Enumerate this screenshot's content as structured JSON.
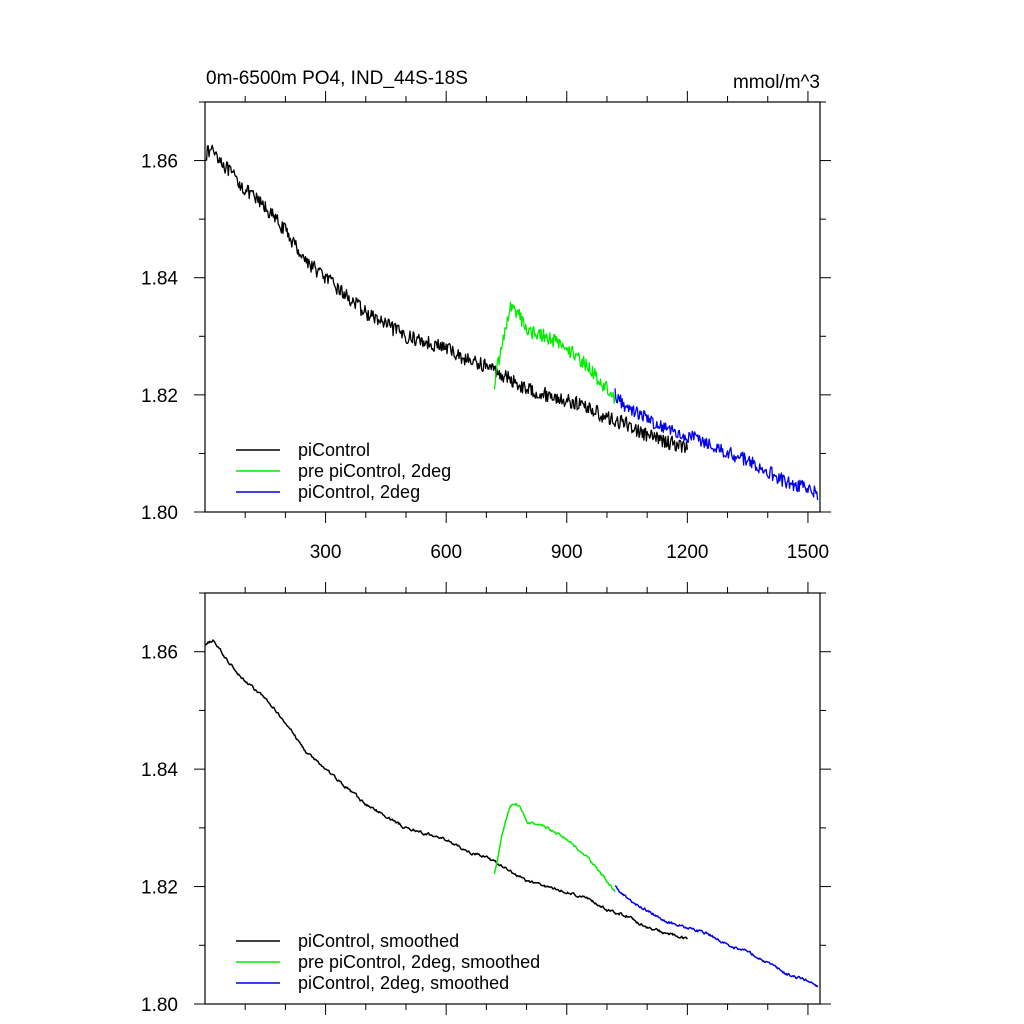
{
  "header": {
    "left_title": "0m-6500m PO4, IND_44S-18S",
    "units": "mmol/m^3"
  },
  "colors": {
    "piControl": "#000000",
    "pre_piControl_2deg": "#00ee00",
    "piControl_2deg": "#0000ee"
  },
  "chart_data": [
    {
      "type": "line",
      "title": "0m-6500m PO4, IND_44S-18S",
      "units": "mmol/m^3",
      "xlabel": "",
      "ylabel": "",
      "xlim": [
        0,
        1530
      ],
      "ylim": [
        1.8,
        1.87
      ],
      "x_ticks": [
        300,
        600,
        900,
        1200,
        1500
      ],
      "x_tick_labels": [
        "300",
        "600",
        "900",
        "1200",
        "1500"
      ],
      "y_ticks": [
        1.8,
        1.82,
        1.84,
        1.86
      ],
      "y_tick_labels": [
        "1.80",
        "1.82",
        "1.84",
        "1.86"
      ],
      "grid": false,
      "legend_position": "bottom-left",
      "noise_amplitude": 0.0012,
      "series": [
        {
          "name": "piControl",
          "color": "#000000",
          "anchors": [
            [
              0,
              1.861
            ],
            [
              20,
              1.862
            ],
            [
              50,
              1.859
            ],
            [
              100,
              1.855
            ],
            [
              150,
              1.852
            ],
            [
              200,
              1.848
            ],
            [
              250,
              1.843
            ],
            [
              300,
              1.84
            ],
            [
              350,
              1.837
            ],
            [
              400,
              1.834
            ],
            [
              450,
              1.832
            ],
            [
              500,
              1.83
            ],
            [
              550,
              1.829
            ],
            [
              600,
              1.828
            ],
            [
              650,
              1.826
            ],
            [
              700,
              1.825
            ],
            [
              750,
              1.823
            ],
            [
              800,
              1.821
            ],
            [
              850,
              1.82
            ],
            [
              900,
              1.819
            ],
            [
              950,
              1.818
            ],
            [
              1000,
              1.816
            ],
            [
              1050,
              1.815
            ],
            [
              1100,
              1.813
            ],
            [
              1150,
              1.812
            ],
            [
              1200,
              1.811
            ]
          ]
        },
        {
          "name": "pre piControl, 2deg",
          "color": "#00ee00",
          "anchors": [
            [
              720,
              1.822
            ],
            [
              740,
              1.829
            ],
            [
              760,
              1.835
            ],
            [
              780,
              1.834
            ],
            [
              800,
              1.831
            ],
            [
              850,
              1.83
            ],
            [
              900,
              1.828
            ],
            [
              950,
              1.825
            ],
            [
              1000,
              1.821
            ],
            [
              1020,
              1.819
            ]
          ]
        },
        {
          "name": "piControl, 2deg",
          "color": "#0000ee",
          "anchors": [
            [
              1020,
              1.82
            ],
            [
              1050,
              1.818
            ],
            [
              1100,
              1.816
            ],
            [
              1150,
              1.814
            ],
            [
              1200,
              1.813
            ],
            [
              1250,
              1.812
            ],
            [
              1300,
              1.81
            ],
            [
              1350,
              1.809
            ],
            [
              1400,
              1.807
            ],
            [
              1450,
              1.805
            ],
            [
              1500,
              1.804
            ],
            [
              1525,
              1.803
            ]
          ]
        }
      ]
    },
    {
      "type": "line",
      "title": "",
      "xlabel": "",
      "ylabel": "",
      "xlim": [
        0,
        1530
      ],
      "ylim": [
        1.8,
        1.87
      ],
      "x_ticks": [
        300,
        600,
        900,
        1200,
        1500
      ],
      "x_tick_labels": [],
      "y_ticks": [
        1.8,
        1.82,
        1.84,
        1.86
      ],
      "y_tick_labels": [
        "1.80",
        "1.82",
        "1.84",
        "1.86"
      ],
      "grid": false,
      "legend_position": "bottom-left",
      "noise_amplitude": 0.0005,
      "series": [
        {
          "name": "piControl, smoothed",
          "color": "#000000",
          "anchors": [
            [
              0,
              1.861
            ],
            [
              20,
              1.862
            ],
            [
              50,
              1.859
            ],
            [
              100,
              1.855
            ],
            [
              150,
              1.852
            ],
            [
              200,
              1.848
            ],
            [
              250,
              1.843
            ],
            [
              300,
              1.84
            ],
            [
              350,
              1.837
            ],
            [
              400,
              1.834
            ],
            [
              450,
              1.832
            ],
            [
              500,
              1.83
            ],
            [
              550,
              1.829
            ],
            [
              600,
              1.828
            ],
            [
              650,
              1.826
            ],
            [
              700,
              1.825
            ],
            [
              750,
              1.823
            ],
            [
              800,
              1.821
            ],
            [
              850,
              1.82
            ],
            [
              900,
              1.819
            ],
            [
              950,
              1.818
            ],
            [
              1000,
              1.816
            ],
            [
              1050,
              1.815
            ],
            [
              1100,
              1.813
            ],
            [
              1150,
              1.812
            ],
            [
              1200,
              1.811
            ]
          ]
        },
        {
          "name": "pre piControl, 2deg, smoothed",
          "color": "#00ee00",
          "anchors": [
            [
              720,
              1.822
            ],
            [
              740,
              1.829
            ],
            [
              760,
              1.834
            ],
            [
              780,
              1.834
            ],
            [
              800,
              1.831
            ],
            [
              850,
              1.83
            ],
            [
              900,
              1.828
            ],
            [
              950,
              1.825
            ],
            [
              1000,
              1.821
            ],
            [
              1020,
              1.819
            ]
          ]
        },
        {
          "name": "piControl, 2deg, smoothed",
          "color": "#0000ee",
          "anchors": [
            [
              1020,
              1.82
            ],
            [
              1050,
              1.818
            ],
            [
              1100,
              1.816
            ],
            [
              1150,
              1.814
            ],
            [
              1200,
              1.813
            ],
            [
              1250,
              1.812
            ],
            [
              1300,
              1.81
            ],
            [
              1350,
              1.809
            ],
            [
              1400,
              1.807
            ],
            [
              1450,
              1.805
            ],
            [
              1500,
              1.804
            ],
            [
              1525,
              1.803
            ]
          ]
        }
      ]
    }
  ]
}
